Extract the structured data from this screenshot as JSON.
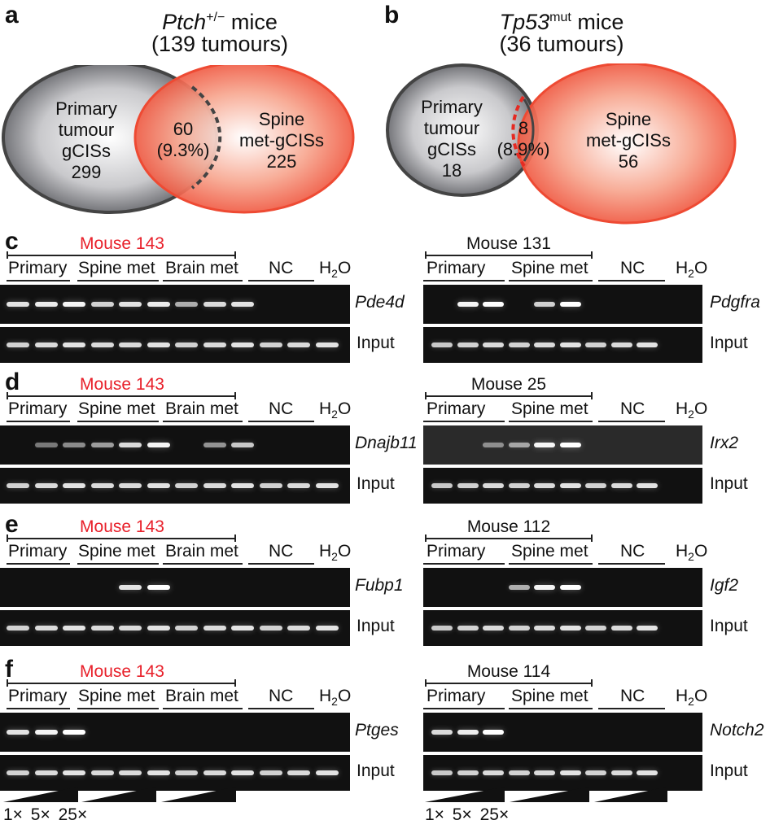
{
  "panels": {
    "a": {
      "label": "a",
      "title_gene": "Ptch",
      "title_sup": "+/−",
      "title_rest": " mice",
      "subtitle": "(139 tumours)",
      "left_text": [
        "Primary",
        "tumour",
        "gCISs",
        "299"
      ],
      "overlap_text": [
        "60",
        "(9.3%)"
      ],
      "right_text": [
        "Spine",
        "met-gCISs",
        "225"
      ]
    },
    "b": {
      "label": "b",
      "title_gene": "Tp53",
      "title_sup": "mut",
      "title_rest": " mice",
      "subtitle": "(36 tumours)",
      "left_text": [
        "Primary",
        "tumour",
        "gCISs",
        "18"
      ],
      "overlap_text": [
        "8",
        "(8.9%)"
      ],
      "right_text": [
        "Spine",
        "met-gCISs",
        "56"
      ]
    },
    "c": {
      "label": "c",
      "left_mouse": "Mouse 143",
      "right_mouse": "Mouse 131",
      "left_gene": "Pde4d",
      "right_gene": "Pdgfra"
    },
    "d": {
      "label": "d",
      "left_mouse": "Mouse 143",
      "right_mouse": "Mouse 25",
      "left_gene": "Dnajb11",
      "right_gene": "Irx2"
    },
    "e": {
      "label": "e",
      "left_mouse": "Mouse 143",
      "right_mouse": "Mouse 112",
      "left_gene": "Fubp1",
      "right_gene": "Igf2"
    },
    "f": {
      "label": "f",
      "left_mouse": "Mouse 143",
      "right_mouse": "Mouse 114",
      "left_gene": "Ptges",
      "right_gene": "Notch2"
    }
  },
  "lanes": {
    "primary": "Primary",
    "spine_met": "Spine met",
    "brain_met": "Brain met",
    "nc": "NC",
    "h2o_h": "H",
    "h2o_sub": "2",
    "h2o_o": "O"
  },
  "input_label": "Input",
  "dilution_labels": [
    "1×",
    "5×",
    "25×"
  ],
  "colors": {
    "red_label": "#e8202a",
    "spine_fill": "#f04a38",
    "gel": "#111111"
  },
  "band_intensity": {
    "c_left": [
      0.85,
      0.9,
      0.95,
      0.75,
      0.85,
      0.9,
      0.55,
      0.8,
      0.85,
      0,
      0,
      0,
      0
    ],
    "c_right": [
      0,
      0.95,
      1.0,
      0,
      0.75,
      1.0,
      0,
      0,
      0,
      0
    ],
    "d_left": [
      0,
      0.25,
      0.35,
      0.45,
      0.8,
      0.95,
      0,
      0.4,
      0.7,
      0,
      0,
      0,
      0
    ],
    "d_right": [
      0,
      0,
      0.3,
      0.45,
      0.95,
      1.0,
      0,
      0,
      0,
      0
    ],
    "e_left": [
      0,
      0,
      0,
      0,
      0.85,
      1.0,
      0,
      0,
      0,
      0,
      0,
      0,
      0
    ],
    "e_right": [
      0,
      0,
      0,
      0.55,
      0.95,
      1.0,
      0,
      0,
      0,
      0
    ],
    "f_left": [
      0.85,
      0.95,
      1.0,
      0,
      0,
      0,
      0,
      0,
      0,
      0,
      0,
      0,
      0
    ],
    "f_right": [
      0.8,
      0.9,
      1.0,
      0,
      0,
      0,
      0,
      0,
      0,
      0
    ],
    "input_left": [
      0.75,
      0.8,
      0.85,
      0.8,
      0.8,
      0.85,
      0.75,
      0.8,
      0.85,
      0.75,
      0.8,
      0.85,
      0
    ],
    "input_right": [
      0.7,
      0.75,
      0.8,
      0.75,
      0.8,
      0.85,
      0.75,
      0.8,
      0.85,
      0
    ]
  }
}
